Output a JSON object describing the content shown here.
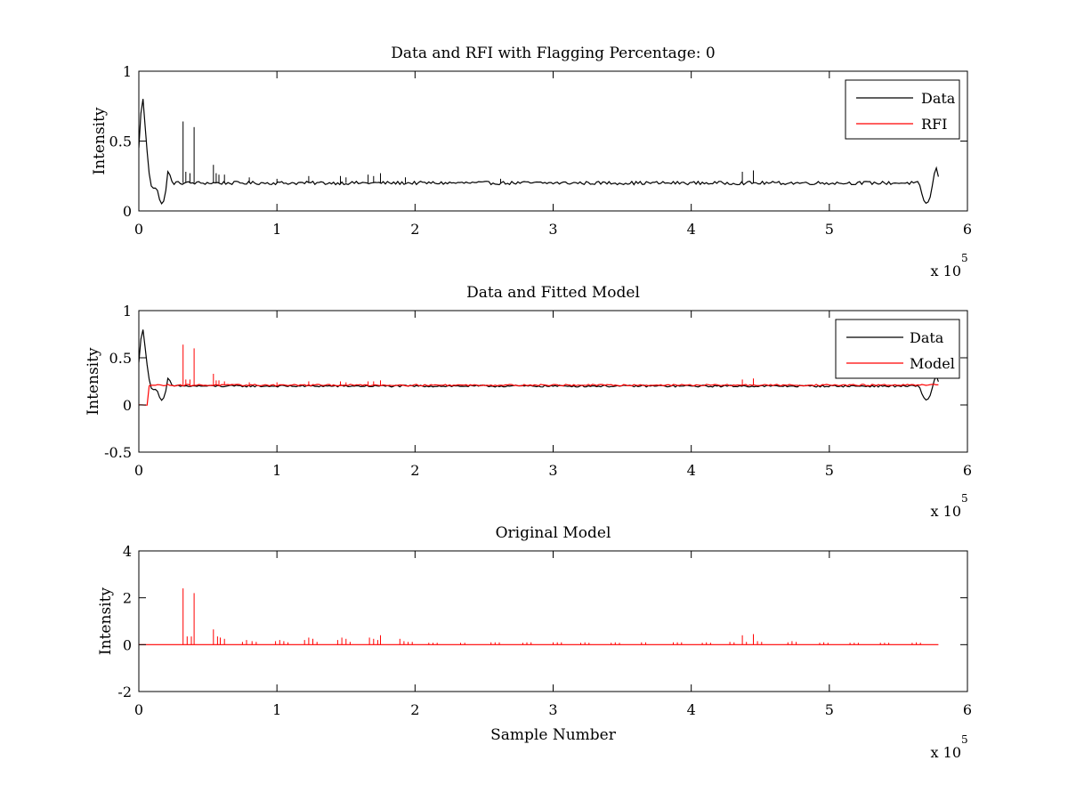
{
  "chart_data": [
    {
      "type": "line",
      "title": "Data and RFI with Flagging Percentage: 0",
      "xlabel": "",
      "ylabel": "Intensity",
      "xlim": [
        0,
        600000
      ],
      "ylim": [
        0,
        1
      ],
      "xticks": [
        0,
        1,
        2,
        3,
        4,
        5,
        6
      ],
      "yticks": [
        "0",
        "0.5",
        "1"
      ],
      "x_exponent_label": "x 10",
      "x_exponent_power": "5",
      "legend_position": "top-right",
      "legend": [
        {
          "name": "Data",
          "color": "#000000"
        },
        {
          "name": "RFI",
          "color": "#ff0000"
        }
      ],
      "series": [
        {
          "name": "Data",
          "color": "#000000",
          "baseline": 0.2,
          "noise": 0.012,
          "shape_points": [
            [
              0,
              0.45
            ],
            [
              1500,
              0.7
            ],
            [
              3000,
              0.8
            ],
            [
              5000,
              0.55
            ],
            [
              7000,
              0.3
            ],
            [
              9000,
              0.18
            ],
            [
              11000,
              0.16
            ],
            [
              13000,
              0.17
            ],
            [
              15000,
              0.08
            ],
            [
              16500,
              0.05
            ],
            [
              18500,
              0.08
            ],
            [
              20000,
              0.18
            ],
            [
              21500,
              0.33
            ],
            [
              23000,
              0.22
            ],
            [
              25000,
              0.2
            ],
            [
              565000,
              0.2
            ],
            [
              567000,
              0.12
            ],
            [
              569000,
              0.06
            ],
            [
              571000,
              0.05
            ],
            [
              573000,
              0.1
            ],
            [
              575000,
              0.2
            ],
            [
              577000,
              0.33
            ],
            [
              578500,
              0.26
            ],
            [
              580000,
              0.22
            ]
          ],
          "spikes": [
            [
              32000,
              0.64
            ],
            [
              34000,
              0.28
            ],
            [
              37000,
              0.27
            ],
            [
              40000,
              0.6
            ],
            [
              54000,
              0.33
            ],
            [
              56000,
              0.27
            ],
            [
              58000,
              0.26
            ],
            [
              62000,
              0.26
            ],
            [
              80000,
              0.24
            ],
            [
              100000,
              0.23
            ],
            [
              123000,
              0.25
            ],
            [
              146000,
              0.25
            ],
            [
              150000,
              0.24
            ],
            [
              166000,
              0.26
            ],
            [
              170000,
              0.25
            ],
            [
              175000,
              0.27
            ],
            [
              193000,
              0.24
            ],
            [
              262000,
              0.23
            ],
            [
              437000,
              0.28
            ],
            [
              445000,
              0.29
            ]
          ]
        }
      ]
    },
    {
      "type": "line",
      "title": "Data and Fitted Model",
      "xlabel": "",
      "ylabel": "Intensity",
      "xlim": [
        0,
        600000
      ],
      "ylim": [
        -0.5,
        1
      ],
      "xticks": [
        0,
        1,
        2,
        3,
        4,
        5,
        6
      ],
      "yticks": [
        "-0.5",
        "0",
        "0.5",
        "1"
      ],
      "x_exponent_label": "x 10",
      "x_exponent_power": "5",
      "legend_position": "top-right",
      "legend": [
        {
          "name": "Data",
          "color": "#000000"
        },
        {
          "name": "Model",
          "color": "#ff0000"
        }
      ],
      "series": [
        {
          "name": "Data",
          "color": "#000000",
          "baseline": 0.2,
          "noise": 0.01,
          "shape_points": [
            [
              0,
              0.45
            ],
            [
              1500,
              0.7
            ],
            [
              3000,
              0.8
            ],
            [
              5000,
              0.55
            ],
            [
              7000,
              0.3
            ],
            [
              9000,
              0.18
            ],
            [
              11000,
              0.16
            ],
            [
              13000,
              0.17
            ],
            [
              15000,
              0.08
            ],
            [
              16500,
              0.05
            ],
            [
              18500,
              0.08
            ],
            [
              20000,
              0.18
            ],
            [
              21500,
              0.33
            ],
            [
              23000,
              0.22
            ],
            [
              25000,
              0.2
            ],
            [
              565000,
              0.2
            ],
            [
              567000,
              0.12
            ],
            [
              569000,
              0.06
            ],
            [
              571000,
              0.05
            ],
            [
              573000,
              0.1
            ],
            [
              575000,
              0.2
            ],
            [
              577000,
              0.33
            ],
            [
              578500,
              0.26
            ],
            [
              580000,
              0.22
            ]
          ],
          "spikes": []
        },
        {
          "name": "Model",
          "color": "#ff0000",
          "baseline": 0.21,
          "noise": 0.008,
          "shape_points": [
            [
              0,
              0
            ],
            [
              6000,
              0
            ],
            [
              6500,
              0.2
            ],
            [
              580000,
              0.21
            ]
          ],
          "spikes": [
            [
              32000,
              0.64
            ],
            [
              34000,
              0.27
            ],
            [
              37000,
              0.27
            ],
            [
              40000,
              0.6
            ],
            [
              54000,
              0.33
            ],
            [
              56000,
              0.26
            ],
            [
              58000,
              0.26
            ],
            [
              62000,
              0.25
            ],
            [
              80000,
              0.24
            ],
            [
              100000,
              0.24
            ],
            [
              123000,
              0.25
            ],
            [
              146000,
              0.25
            ],
            [
              150000,
              0.24
            ],
            [
              166000,
              0.25
            ],
            [
              170000,
              0.25
            ],
            [
              175000,
              0.26
            ],
            [
              437000,
              0.27
            ],
            [
              445000,
              0.28
            ]
          ]
        }
      ]
    },
    {
      "type": "line",
      "title": "Original Model",
      "xlabel": "Sample Number",
      "ylabel": "Intensity",
      "xlim": [
        0,
        600000
      ],
      "ylim": [
        -2,
        4
      ],
      "xticks": [
        0,
        1,
        2,
        3,
        4,
        5,
        6
      ],
      "yticks": [
        "-2",
        "0",
        "2",
        "4"
      ],
      "x_exponent_label": "x 10",
      "x_exponent_power": "5",
      "series": [
        {
          "name": "Original Model",
          "color": "#ff0000",
          "baseline": 0,
          "x_end": 580000,
          "spikes": [
            [
              32000,
              2.4
            ],
            [
              35000,
              0.35
            ],
            [
              38000,
              0.35
            ],
            [
              40000,
              2.2
            ],
            [
              54000,
              0.65
            ],
            [
              57000,
              0.35
            ],
            [
              59000,
              0.3
            ],
            [
              62000,
              0.25
            ],
            [
              75000,
              0.12
            ],
            [
              78000,
              0.2
            ],
            [
              82000,
              0.15
            ],
            [
              85000,
              0.12
            ],
            [
              99000,
              0.15
            ],
            [
              102000,
              0.2
            ],
            [
              105000,
              0.15
            ],
            [
              108000,
              0.1
            ],
            [
              120000,
              0.2
            ],
            [
              123000,
              0.3
            ],
            [
              126000,
              0.25
            ],
            [
              129000,
              0.12
            ],
            [
              144000,
              0.2
            ],
            [
              147000,
              0.3
            ],
            [
              150000,
              0.25
            ],
            [
              153000,
              0.12
            ],
            [
              167000,
              0.3
            ],
            [
              170000,
              0.25
            ],
            [
              173000,
              0.2
            ],
            [
              175000,
              0.4
            ],
            [
              189000,
              0.25
            ],
            [
              192000,
              0.15
            ],
            [
              195000,
              0.12
            ],
            [
              198000,
              0.12
            ],
            [
              210000,
              0.08
            ],
            [
              213000,
              0.08
            ],
            [
              216000,
              0.08
            ],
            [
              233000,
              0.08
            ],
            [
              236000,
              0.08
            ],
            [
              255000,
              0.1
            ],
            [
              258000,
              0.1
            ],
            [
              261000,
              0.1
            ],
            [
              278000,
              0.08
            ],
            [
              281000,
              0.1
            ],
            [
              284000,
              0.1
            ],
            [
              300000,
              0.1
            ],
            [
              303000,
              0.1
            ],
            [
              306000,
              0.1
            ],
            [
              320000,
              0.08
            ],
            [
              323000,
              0.1
            ],
            [
              326000,
              0.08
            ],
            [
              342000,
              0.08
            ],
            [
              345000,
              0.1
            ],
            [
              348000,
              0.08
            ],
            [
              364000,
              0.1
            ],
            [
              367000,
              0.1
            ],
            [
              387000,
              0.1
            ],
            [
              390000,
              0.1
            ],
            [
              393000,
              0.1
            ],
            [
              408000,
              0.08
            ],
            [
              411000,
              0.1
            ],
            [
              414000,
              0.08
            ],
            [
              428000,
              0.12
            ],
            [
              431000,
              0.1
            ],
            [
              437000,
              0.4
            ],
            [
              440000,
              0.12
            ],
            [
              445000,
              0.45
            ],
            [
              448000,
              0.15
            ],
            [
              451000,
              0.12
            ],
            [
              470000,
              0.1
            ],
            [
              473000,
              0.15
            ],
            [
              476000,
              0.12
            ],
            [
              493000,
              0.08
            ],
            [
              496000,
              0.1
            ],
            [
              499000,
              0.08
            ],
            [
              515000,
              0.08
            ],
            [
              518000,
              0.08
            ],
            [
              521000,
              0.08
            ],
            [
              537000,
              0.08
            ],
            [
              540000,
              0.08
            ],
            [
              543000,
              0.08
            ],
            [
              560000,
              0.08
            ],
            [
              563000,
              0.1
            ],
            [
              566000,
              0.08
            ]
          ]
        }
      ]
    }
  ]
}
